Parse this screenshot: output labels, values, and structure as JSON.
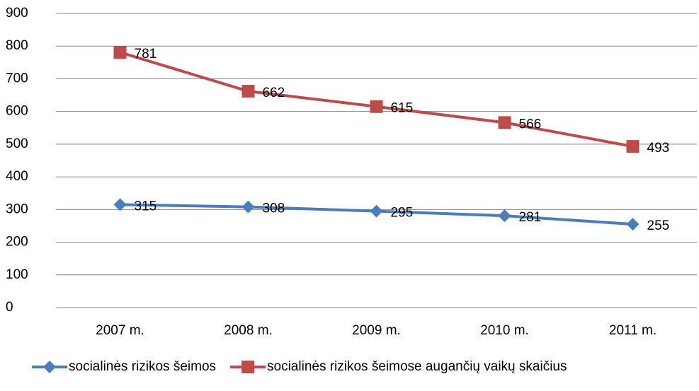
{
  "chart_data": {
    "type": "line",
    "categories": [
      "2007 m.",
      "2008 m.",
      "2009 m.",
      "2010 m.",
      "2011 m."
    ],
    "series": [
      {
        "name": "socialinės rizikos šeimos",
        "color": "#4a7ebb",
        "marker": "diamond",
        "values": [
          315,
          308,
          295,
          281,
          255
        ]
      },
      {
        "name": "socialinės rizikos šeimose augančių vaikų skaičius",
        "color": "#be4b48",
        "marker": "square",
        "values": [
          781,
          662,
          615,
          566,
          493
        ]
      }
    ],
    "ylim": [
      0,
      900
    ],
    "yticks": [
      0,
      100,
      200,
      300,
      400,
      500,
      600,
      700,
      800,
      900
    ],
    "grid": true,
    "legend": "bottom",
    "data_labels": true
  }
}
